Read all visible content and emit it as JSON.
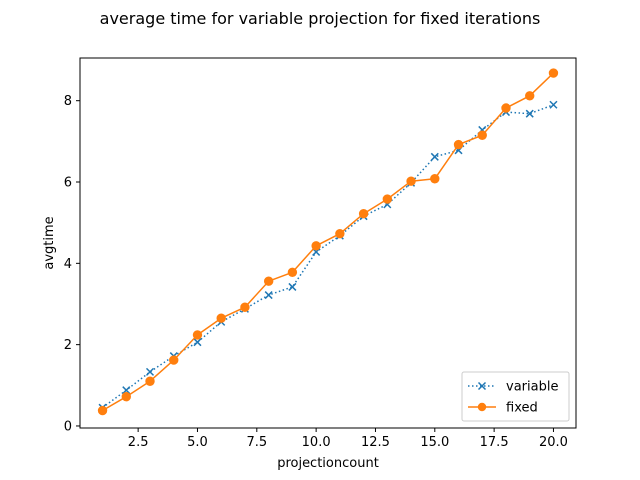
{
  "chart_data": {
    "type": "line",
    "title": "average time for variable projection for fixed iterations",
    "xlabel": "projectioncount",
    "ylabel": "avgtime",
    "xlim": [
      0.05,
      20.95
    ],
    "ylim": [
      -0.05,
      9.05
    ],
    "xticks": [
      2.5,
      5.0,
      7.5,
      10.0,
      12.5,
      15.0,
      17.5,
      20.0
    ],
    "xtick_labels": [
      "2.5",
      "5.0",
      "7.5",
      "10.0",
      "12.5",
      "15.0",
      "17.5",
      "20.0"
    ],
    "yticks": [
      0,
      2,
      4,
      6,
      8
    ],
    "ytick_labels": [
      "0",
      "2",
      "4",
      "6",
      "8"
    ],
    "grid": false,
    "legend_position": "lower-right",
    "x": [
      1,
      2,
      3,
      4,
      5,
      6,
      7,
      8,
      9,
      10,
      11,
      12,
      13,
      14,
      15,
      16,
      17,
      18,
      19,
      20
    ],
    "series": [
      {
        "name": "variable",
        "color": "#1f77b4",
        "linestyle": "dotted",
        "marker": "x",
        "values": [
          0.45,
          0.88,
          1.33,
          1.72,
          2.06,
          2.56,
          2.88,
          3.22,
          3.42,
          4.28,
          4.68,
          5.16,
          5.45,
          5.98,
          6.62,
          6.78,
          7.28,
          7.72,
          7.68,
          7.9
        ]
      },
      {
        "name": "fixed",
        "color": "#ff7f0e",
        "linestyle": "solid",
        "marker": "circle",
        "values": [
          0.38,
          0.72,
          1.1,
          1.62,
          2.24,
          2.65,
          2.92,
          3.56,
          3.78,
          4.43,
          4.73,
          5.22,
          5.58,
          6.02,
          6.08,
          6.92,
          7.15,
          7.82,
          8.12,
          8.68
        ]
      }
    ]
  }
}
